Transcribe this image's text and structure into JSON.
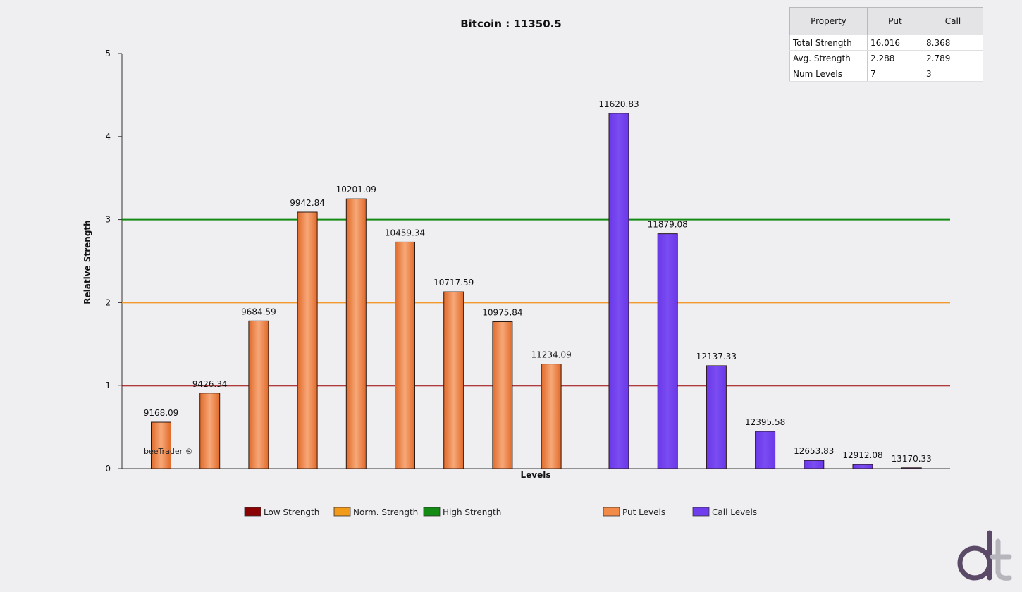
{
  "chart_data": {
    "type": "bar",
    "title": "Bitcoin : 11350.5",
    "xlabel": "Levels",
    "ylabel": "Relative Strength",
    "ylim": [
      0,
      5
    ],
    "yticks": [
      0,
      1,
      2,
      3,
      4,
      5
    ],
    "put_series": {
      "name": "Put Levels",
      "color": "#f28a48",
      "points": [
        {
          "label": "9168.09",
          "value": 0.56
        },
        {
          "label": "9426.34",
          "value": 0.91
        },
        {
          "label": "9684.59",
          "value": 1.78
        },
        {
          "label": "9942.84",
          "value": 3.09
        },
        {
          "label": "10201.09",
          "value": 3.25
        },
        {
          "label": "10459.34",
          "value": 2.73
        },
        {
          "label": "10717.59",
          "value": 2.13
        },
        {
          "label": "10975.84",
          "value": 1.77
        },
        {
          "label": "11234.09",
          "value": 1.26
        }
      ]
    },
    "call_series": {
      "name": "Call Levels",
      "color": "#6f3ded",
      "points": [
        {
          "label": "11620.83",
          "value": 4.28
        },
        {
          "label": "11879.08",
          "value": 2.83
        },
        {
          "label": "12137.33",
          "value": 1.24
        },
        {
          "label": "12395.58",
          "value": 0.45
        },
        {
          "label": "12653.83",
          "value": 0.1
        },
        {
          "label": "12912.08",
          "value": 0.05
        },
        {
          "label": "13170.33",
          "value": 0.01
        }
      ]
    },
    "reference_lines": [
      {
        "name": "Low Strength",
        "value": 1,
        "color": "#990000"
      },
      {
        "name": "Norm. Strength",
        "value": 2,
        "color": "#f29a2e"
      },
      {
        "name": "High Strength",
        "value": 3,
        "color": "#138a13"
      }
    ],
    "legend": [
      {
        "label": "Low Strength",
        "color": "#8b0000"
      },
      {
        "label": "Norm. Strength",
        "color": "#f29a1a"
      },
      {
        "label": "High Strength",
        "color": "#138a13"
      },
      {
        "label": "Put Levels",
        "color": "#f28a48"
      },
      {
        "label": "Call Levels",
        "color": "#6f3ded"
      }
    ],
    "legend_position": "bottom",
    "grid": false,
    "watermark": "beeTrader ®"
  },
  "stats_table": {
    "headers": [
      "Property",
      "Put",
      "Call"
    ],
    "rows": [
      [
        "Total Strength",
        "16.016",
        "8.368"
      ],
      [
        "Avg. Strength",
        "2.288",
        "2.789"
      ],
      [
        "Num Levels",
        "7",
        "3"
      ]
    ]
  },
  "logo": {
    "text": "dt",
    "color": "#5a4a68"
  }
}
